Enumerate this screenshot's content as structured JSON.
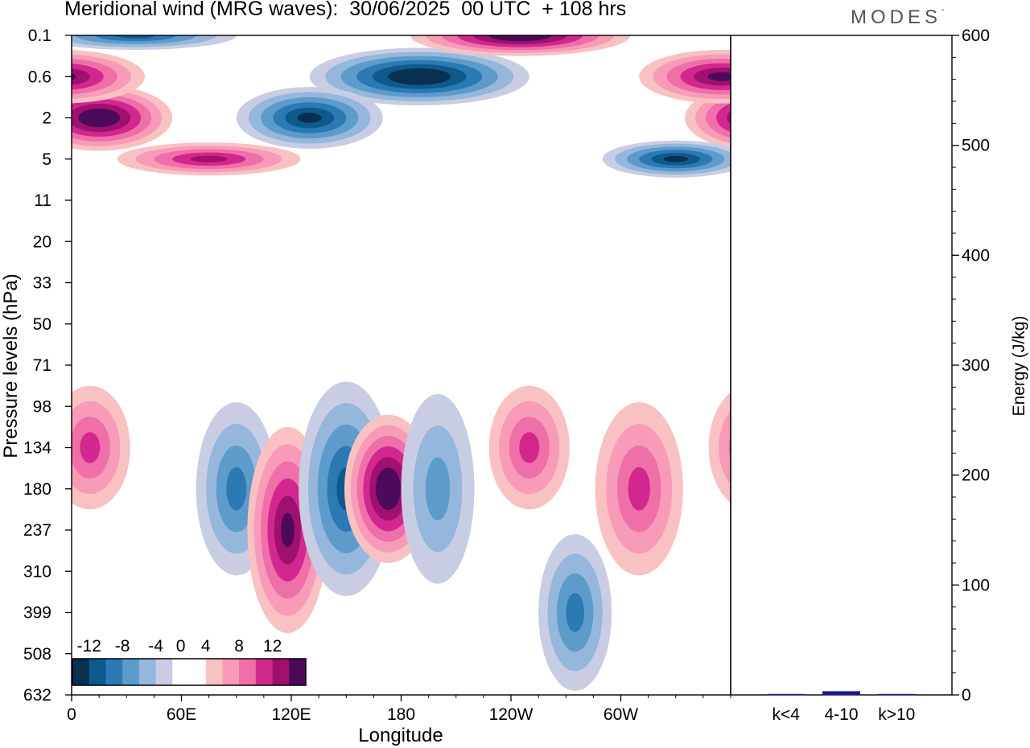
{
  "header": {
    "title": "Meridional wind (MRG waves):  30/06/2025  00 UTC  + 108 hrs",
    "logo": "MODES",
    "logo_mark": "°"
  },
  "chart_data": [
    {
      "type": "heatmap",
      "title": "Meridional wind (MRG waves):  30/06/2025  00 UTC  + 108 hrs",
      "xlabel": "Longitude",
      "ylabel": "Pressure levels (hPa)",
      "x_tick_labels": [
        "0",
        "60E",
        "120E",
        "180",
        "120W",
        "60W"
      ],
      "x_tick_values_deg": [
        0,
        60,
        120,
        180,
        240,
        300
      ],
      "x_range_deg": [
        0,
        360
      ],
      "y_tick_labels": [
        "0.1",
        "0.6",
        "2",
        "5",
        "11",
        "20",
        "33",
        "50",
        "71",
        "98",
        "134",
        "180",
        "237",
        "310",
        "399",
        "508",
        "632"
      ],
      "y_scale": "model levels (non-linear)",
      "colorbar": {
        "labels": [
          "-12",
          "-8",
          "-4",
          "0",
          "4",
          "8",
          "12"
        ],
        "levels": [
          -14,
          -12,
          -10,
          -8,
          -6,
          -4,
          -2,
          2,
          4,
          6,
          8,
          10,
          12,
          14
        ],
        "colors": [
          "#08304f",
          "#0e5a8c",
          "#2b7ab4",
          "#5d9bcb",
          "#94b7db",
          "#c9cde3",
          "#ffffff",
          "#ffffff",
          "#f9c1c2",
          "#f79bb9",
          "#ef6fa8",
          "#d2278e",
          "#a0106e",
          "#4d0a5c"
        ]
      },
      "colors": {
        "strong_negative": "#08304f",
        "weak_negative": "#c9cde3",
        "weak_positive": "#f9c1c2",
        "strong_positive": "#4d0a5c"
      },
      "features": [
        {
          "lon": 15,
          "level": "2",
          "value": 14
        },
        {
          "lon": 35,
          "level": "0.1",
          "value": -10
        },
        {
          "lon": 190,
          "level": "0.6",
          "value": -14
        },
        {
          "lon": 130,
          "level": "2",
          "value": -12
        },
        {
          "lon": 245,
          "level": "0.1",
          "value": 14
        },
        {
          "lon": 355,
          "level": "0.6",
          "value": 12
        },
        {
          "lon": 75,
          "level": "5",
          "value": 10
        },
        {
          "lon": 330,
          "level": "5",
          "value": -12
        },
        {
          "lon": 10,
          "level": "134",
          "value": 8
        },
        {
          "lon": 90,
          "level": "180",
          "value": -8
        },
        {
          "lon": 118,
          "level": "237",
          "value": 12
        },
        {
          "lon": 150,
          "level": "180",
          "value": -10
        },
        {
          "lon": 173,
          "level": "180",
          "value": 14
        },
        {
          "lon": 200,
          "level": "180",
          "value": -6
        },
        {
          "lon": 250,
          "level": "134",
          "value": 8
        },
        {
          "lon": 310,
          "level": "180",
          "value": 8
        },
        {
          "lon": 275,
          "level": "399",
          "value": -8
        }
      ]
    },
    {
      "type": "bar",
      "ylabel": "Energy (J/kg)",
      "categories": [
        "k<4",
        "4-10",
        "k>10"
      ],
      "values": [
        0.5,
        3,
        0.5
      ],
      "ylim": [
        0,
        600
      ],
      "y_tick_labels": [
        "0",
        "100",
        "200",
        "300",
        "400",
        "500",
        "600"
      ],
      "bar_color": "#1a1a8c"
    }
  ]
}
